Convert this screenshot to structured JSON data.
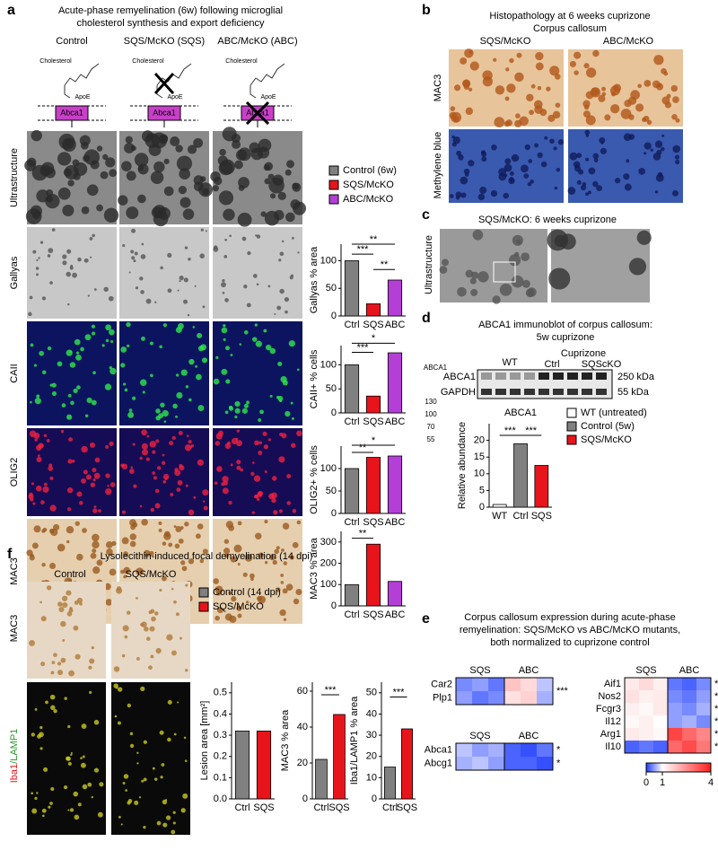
{
  "panels": {
    "a": {
      "letter": "a",
      "title": [
        "Acute-phase remyelination (6w) following microglial",
        "cholesterol synthesis and export deficiency"
      ],
      "columns": [
        "Control",
        "SQS/McKO (SQS)",
        "ABC/McKO (ABC)"
      ],
      "schematic": {
        "cholesterol": "Cholesterol",
        "apoe": "ApoE",
        "transporter": "Abca1"
      },
      "rows": [
        "Ultrastructure",
        "Gallyas",
        "CAII",
        "OLIG2",
        "MAC3"
      ],
      "legend": [
        {
          "name": "Control (6w)",
          "color": "#808080"
        },
        {
          "name": "SQS/McKO",
          "color": "#e8141b"
        },
        {
          "name": "ABC/McKO",
          "color": "#b43fd6"
        }
      ],
      "charts": [
        {
          "type": "bar",
          "ylabel": "Gallyas % area",
          "categories": [
            "Ctrl",
            "SQS",
            "ABC"
          ],
          "values": [
            100,
            22,
            65
          ],
          "colors": [
            "#808080",
            "#e8141b",
            "#b43fd6"
          ],
          "ylim": [
            0,
            130
          ],
          "yticks": [
            0,
            50,
            100
          ],
          "significance": [
            "***",
            "**",
            "**"
          ]
        },
        {
          "type": "bar",
          "ylabel": "CAII+ % cells",
          "categories": [
            "Ctrl",
            "SQS",
            "ABC"
          ],
          "values": [
            100,
            35,
            125
          ],
          "colors": [
            "#808080",
            "#e8141b",
            "#b43fd6"
          ],
          "ylim": [
            0,
            140
          ],
          "yticks": [
            0,
            50,
            100
          ],
          "significance": [
            "***",
            "*"
          ]
        },
        {
          "type": "bar",
          "ylabel": "OLIG2+ % cells",
          "categories": [
            "Ctrl",
            "SQS",
            "ABC"
          ],
          "values": [
            100,
            125,
            128
          ],
          "colors": [
            "#808080",
            "#e8141b",
            "#b43fd6"
          ],
          "ylim": [
            0,
            150
          ],
          "yticks": [
            0,
            50,
            100
          ],
          "significance": [
            "**",
            "*"
          ]
        },
        {
          "type": "bar",
          "ylabel": "MAC3 % area",
          "categories": [
            "Ctrl",
            "SQS",
            "ABC"
          ],
          "values": [
            100,
            290,
            115
          ],
          "colors": [
            "#808080",
            "#e8141b",
            "#b43fd6"
          ],
          "ylim": [
            0,
            350
          ],
          "yticks": [
            0,
            100,
            200,
            300
          ],
          "significance": [
            "**"
          ]
        }
      ]
    },
    "b": {
      "letter": "b",
      "title": [
        "Histopathology at 6 weeks cuprizone",
        "Corpus callosum"
      ],
      "columns": [
        "SQS/McKO",
        "ABC/McKO"
      ],
      "rows": [
        "MAC3",
        "Methylene blue"
      ]
    },
    "c": {
      "letter": "c",
      "title": "SQS/McKO: 6 weeks cuprizone",
      "row": "Ultrastructure"
    },
    "d": {
      "letter": "d",
      "title": [
        "ABCA1 immunoblot of corpus callosum:",
        "5w cuprizone"
      ],
      "blot": {
        "groups": [
          "WT",
          "Cuprizone",
          "Ctrl",
          "SQScKO"
        ],
        "bands": [
          "ABCA1",
          "GAPDH"
        ],
        "sizes": [
          "250 kDa",
          "55 kDa"
        ],
        "side_label": "ABCA1",
        "markers": [
          "130",
          "100",
          "70",
          "55"
        ]
      },
      "legend": [
        {
          "name": "WT (untreated)",
          "color": "#ffffff"
        },
        {
          "name": "Control (5w)",
          "color": "#808080"
        },
        {
          "name": "SQS/McKO",
          "color": "#e8141b"
        }
      ],
      "chart": {
        "type": "bar",
        "title": "ABCA1",
        "ylabel": "Relative abundance",
        "categories": [
          "WT",
          "Ctrl",
          "SQS"
        ],
        "values": [
          0.8,
          19,
          12.5
        ],
        "colors": [
          "#ffffff",
          "#808080",
          "#e8141b"
        ],
        "ylim": [
          0,
          25
        ],
        "yticks": [
          0,
          5,
          10,
          15,
          20
        ],
        "significance": [
          "***",
          "***"
        ]
      }
    },
    "e": {
      "letter": "e",
      "title": [
        "Corpus callosum expression during acute-phase",
        "remyelination: SQS/McKO vs ABC/McKO mutants,",
        "both normalized to cuprizone control"
      ],
      "heatmaps": [
        {
          "columns": [
            "SQS",
            "ABC"
          ],
          "rows": [
            "Car2",
            "Plp1"
          ],
          "values": [
            [
              0.4,
              0.5,
              0.3,
              1.8,
              1.5,
              0.7
            ],
            [
              0.5,
              0.3,
              0.4,
              1.4,
              1.6,
              0.6
            ]
          ],
          "stars": [
            "***"
          ]
        },
        {
          "columns": [
            "SQS",
            "ABC"
          ],
          "rows": [
            "Abca1",
            "Abcg1"
          ],
          "values": [
            [
              0.7,
              0.5,
              0.6,
              0.2,
              0.1,
              0.3
            ],
            [
              0.6,
              0.7,
              0.5,
              0.2,
              0.2,
              0.1
            ]
          ],
          "stars": [
            "*",
            "*"
          ]
        },
        {
          "columns": [
            "SQS",
            "ABC"
          ],
          "rows": [
            "Aif1",
            "Nos2",
            "Fcgr3",
            "Il12",
            "Arg1",
            "Il10"
          ],
          "values": [
            [
              1.3,
              1.5,
              1.2,
              0.3,
              0.2,
              0.4
            ],
            [
              1.4,
              1.2,
              1.3,
              0.4,
              0.3,
              0.5
            ],
            [
              1.2,
              1.1,
              1.3,
              0.5,
              0.4,
              0.6
            ],
            [
              1.1,
              1.2,
              1.0,
              0.5,
              0.6,
              0.4
            ],
            [
              1.3,
              1.2,
              1.1,
              3.5,
              3.0,
              2.6
            ],
            [
              0.2,
              0.3,
              0.2,
              3.0,
              3.4,
              2.8
            ]
          ],
          "stars": [
            "***",
            "**",
            "*",
            "*",
            "*",
            "*"
          ]
        }
      ],
      "colorbar": {
        "ticks": [
          0,
          1,
          4
        ],
        "colors": [
          "#1e3cff",
          "#ffffff",
          "#ff1e1e"
        ]
      }
    },
    "f": {
      "letter": "f",
      "title": "Lysolecithin-induced focal demyelination (14 dpi)",
      "columns": [
        "Control",
        "SQS/McKO"
      ],
      "rows": [
        "MAC3"
      ],
      "iba_label": [
        "Iba1",
        "/LAMP1"
      ],
      "legend": [
        {
          "name": "Control (14 dpi)",
          "color": "#808080"
        },
        {
          "name": "SQS/McKO",
          "color": "#e8141b"
        }
      ],
      "charts": [
        {
          "type": "bar",
          "ylabel": "Lesion area [mm²]",
          "categories": [
            "Ctrl",
            "SQS"
          ],
          "values": [
            0.32,
            0.32
          ],
          "colors": [
            "#808080",
            "#e8141b"
          ],
          "ylim": [
            0,
            0.55
          ],
          "yticks": [
            {
              "value": 0,
              "label": "0.0"
            },
            0.1,
            0.2,
            0.3,
            0.4,
            0.5
          ],
          "significance": []
        },
        {
          "type": "bar",
          "ylabel": "MAC3 % area",
          "categories": [
            "Ctrl",
            "SQS"
          ],
          "values": [
            22,
            47
          ],
          "colors": [
            "#808080",
            "#e8141b"
          ],
          "ylim": [
            0,
            65
          ],
          "yticks": [
            0,
            20,
            40,
            60
          ],
          "significance": [
            "***"
          ]
        },
        {
          "type": "bar",
          "ylabel": "Iba1/LAMP1 % area",
          "categories": [
            "Ctrl",
            "SQS"
          ],
          "values": [
            15,
            33
          ],
          "colors": [
            "#808080",
            "#e8141b"
          ],
          "ylim": [
            0,
            55
          ],
          "yticks": [
            0,
            10,
            20,
            30,
            40,
            50
          ],
          "significance": [
            "***"
          ]
        }
      ]
    }
  }
}
